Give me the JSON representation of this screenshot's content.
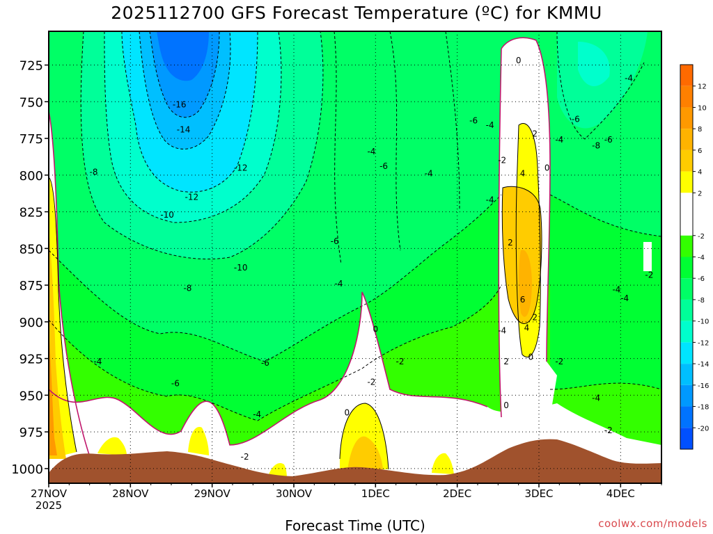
{
  "chart_data": {
    "type": "heatmap",
    "title": "2025112700 GFS Forecast Temperature (ºC) for KMMU",
    "xlabel": "Forecast Time (UTC)",
    "ylabel": "",
    "credit": "coolwx.com/models",
    "y_axis": {
      "ticks": [
        725,
        750,
        775,
        800,
        825,
        850,
        875,
        900,
        925,
        950,
        975,
        1000
      ],
      "range": [
        1010,
        702
      ],
      "inverted": true
    },
    "x_axis": {
      "ticks": [
        {
          "line1": "27NOV",
          "line2": "2025",
          "day": 0
        },
        {
          "line1": "28NOV",
          "line2": "",
          "day": 1
        },
        {
          "line1": "29NOV",
          "line2": "",
          "day": 2
        },
        {
          "line1": "30NOV",
          "line2": "",
          "day": 3
        },
        {
          "line1": "1DEC",
          "line2": "",
          "day": 4
        },
        {
          "line1": "2DEC",
          "line2": "",
          "day": 5
        },
        {
          "line1": "3DEC",
          "line2": "",
          "day": 6
        },
        {
          "line1": "4DEC",
          "line2": "",
          "day": 7
        }
      ],
      "range_days": [
        0,
        7.5
      ]
    },
    "grid": true,
    "colorbar": {
      "ticks": [
        12,
        10,
        8,
        6,
        4,
        2,
        -2,
        -4,
        -6,
        -8,
        -10,
        -12,
        -14,
        -16,
        -18,
        -20
      ],
      "bins": [
        {
          "lo": 12,
          "hi": 14,
          "color": "#ff6a00"
        },
        {
          "lo": 10,
          "hi": 12,
          "color": "#ff8000"
        },
        {
          "lo": 8,
          "hi": 10,
          "color": "#ff9900"
        },
        {
          "lo": 6,
          "hi": 8,
          "color": "#ffb300"
        },
        {
          "lo": 4,
          "hi": 6,
          "color": "#ffcc00"
        },
        {
          "lo": 2,
          "hi": 4,
          "color": "#ffff00"
        },
        {
          "lo": -2,
          "hi": 2,
          "color": "#ffffff"
        },
        {
          "lo": -4,
          "hi": -2,
          "color": "#33ff00"
        },
        {
          "lo": -6,
          "hi": -4,
          "color": "#00ff33"
        },
        {
          "lo": -8,
          "hi": -6,
          "color": "#00ff66"
        },
        {
          "lo": -10,
          "hi": -8,
          "color": "#00ff99"
        },
        {
          "lo": -12,
          "hi": -10,
          "color": "#00ffcc"
        },
        {
          "lo": -14,
          "hi": -12,
          "color": "#00e5ff"
        },
        {
          "lo": -16,
          "hi": -14,
          "color": "#00bfff"
        },
        {
          "lo": -18,
          "hi": -16,
          "color": "#0099ff"
        },
        {
          "lo": -20,
          "hi": -18,
          "color": "#0073ff"
        },
        {
          "lo": -22,
          "hi": -20,
          "color": "#0050ff"
        }
      ]
    },
    "terrain_color": "#a0522d",
    "freezing_contour_color": "#c0166c",
    "contour_labels": [
      {
        "text": "-16",
        "day": 1.6,
        "p": 752
      },
      {
        "text": "-14",
        "day": 1.65,
        "p": 769
      },
      {
        "text": "-12",
        "day": 2.35,
        "p": 795
      },
      {
        "text": "-12",
        "day": 1.75,
        "p": 815
      },
      {
        "text": "-10",
        "day": 1.45,
        "p": 827
      },
      {
        "text": "-10",
        "day": 2.35,
        "p": 863
      },
      {
        "text": "-8",
        "day": 0.55,
        "p": 798
      },
      {
        "text": "-8",
        "day": 1.7,
        "p": 877
      },
      {
        "text": "-6",
        "day": 1.55,
        "p": 942
      },
      {
        "text": "-6",
        "day": 2.65,
        "p": 928
      },
      {
        "text": "-4",
        "day": 0.6,
        "p": 927
      },
      {
        "text": "-4",
        "day": 2.55,
        "p": 963
      },
      {
        "text": "-2",
        "day": 2.4,
        "p": 992
      },
      {
        "text": "-4",
        "day": 3.55,
        "p": 874
      },
      {
        "text": "-6",
        "day": 3.5,
        "p": 845
      },
      {
        "text": "-4",
        "day": 3.95,
        "p": 784
      },
      {
        "text": "-6",
        "day": 4.1,
        "p": 794
      },
      {
        "text": "-4",
        "day": 4.65,
        "p": 799
      },
      {
        "text": "-6",
        "day": 5.2,
        "p": 763
      },
      {
        "text": "-4",
        "day": 5.4,
        "p": 766
      },
      {
        "text": "-4",
        "day": 5.4,
        "p": 817
      },
      {
        "text": "-2",
        "day": 5.55,
        "p": 790
      },
      {
        "text": "-4",
        "day": 5.55,
        "p": 906
      },
      {
        "text": "-2",
        "day": 3.95,
        "p": 941
      },
      {
        "text": "-2",
        "day": 4.3,
        "p": 927
      },
      {
        "text": "0",
        "day": 4.0,
        "p": 905
      },
      {
        "text": "0",
        "day": 3.65,
        "p": 962
      },
      {
        "text": "0",
        "day": 5.6,
        "p": 957
      },
      {
        "text": "2",
        "day": 5.6,
        "p": 927
      },
      {
        "text": "2",
        "day": 5.65,
        "p": 846
      },
      {
        "text": "0",
        "day": 5.75,
        "p": 722
      },
      {
        "text": "2",
        "day": 5.95,
        "p": 772
      },
      {
        "text": "4",
        "day": 5.8,
        "p": 799
      },
      {
        "text": "0",
        "day": 6.1,
        "p": 795
      },
      {
        "text": "6",
        "day": 5.8,
        "p": 885
      },
      {
        "text": "2",
        "day": 5.95,
        "p": 897
      },
      {
        "text": "4",
        "day": 5.85,
        "p": 904
      },
      {
        "text": "0",
        "day": 5.9,
        "p": 924
      },
      {
        "text": "-2",
        "day": 6.25,
        "p": 927
      },
      {
        "text": "-4",
        "day": 6.25,
        "p": 776
      },
      {
        "text": "-6",
        "day": 6.45,
        "p": 762
      },
      {
        "text": "-6",
        "day": 6.85,
        "p": 776
      },
      {
        "text": "-8",
        "day": 6.7,
        "p": 780
      },
      {
        "text": "-4",
        "day": 7.1,
        "p": 734
      },
      {
        "text": "-4",
        "day": 6.95,
        "p": 878
      },
      {
        "text": "-4",
        "day": 7.05,
        "p": 884
      },
      {
        "text": "-2",
        "day": 7.35,
        "p": 868
      },
      {
        "text": "-4",
        "day": 6.7,
        "p": 952
      },
      {
        "text": "-2",
        "day": 6.85,
        "p": 974
      }
    ]
  }
}
